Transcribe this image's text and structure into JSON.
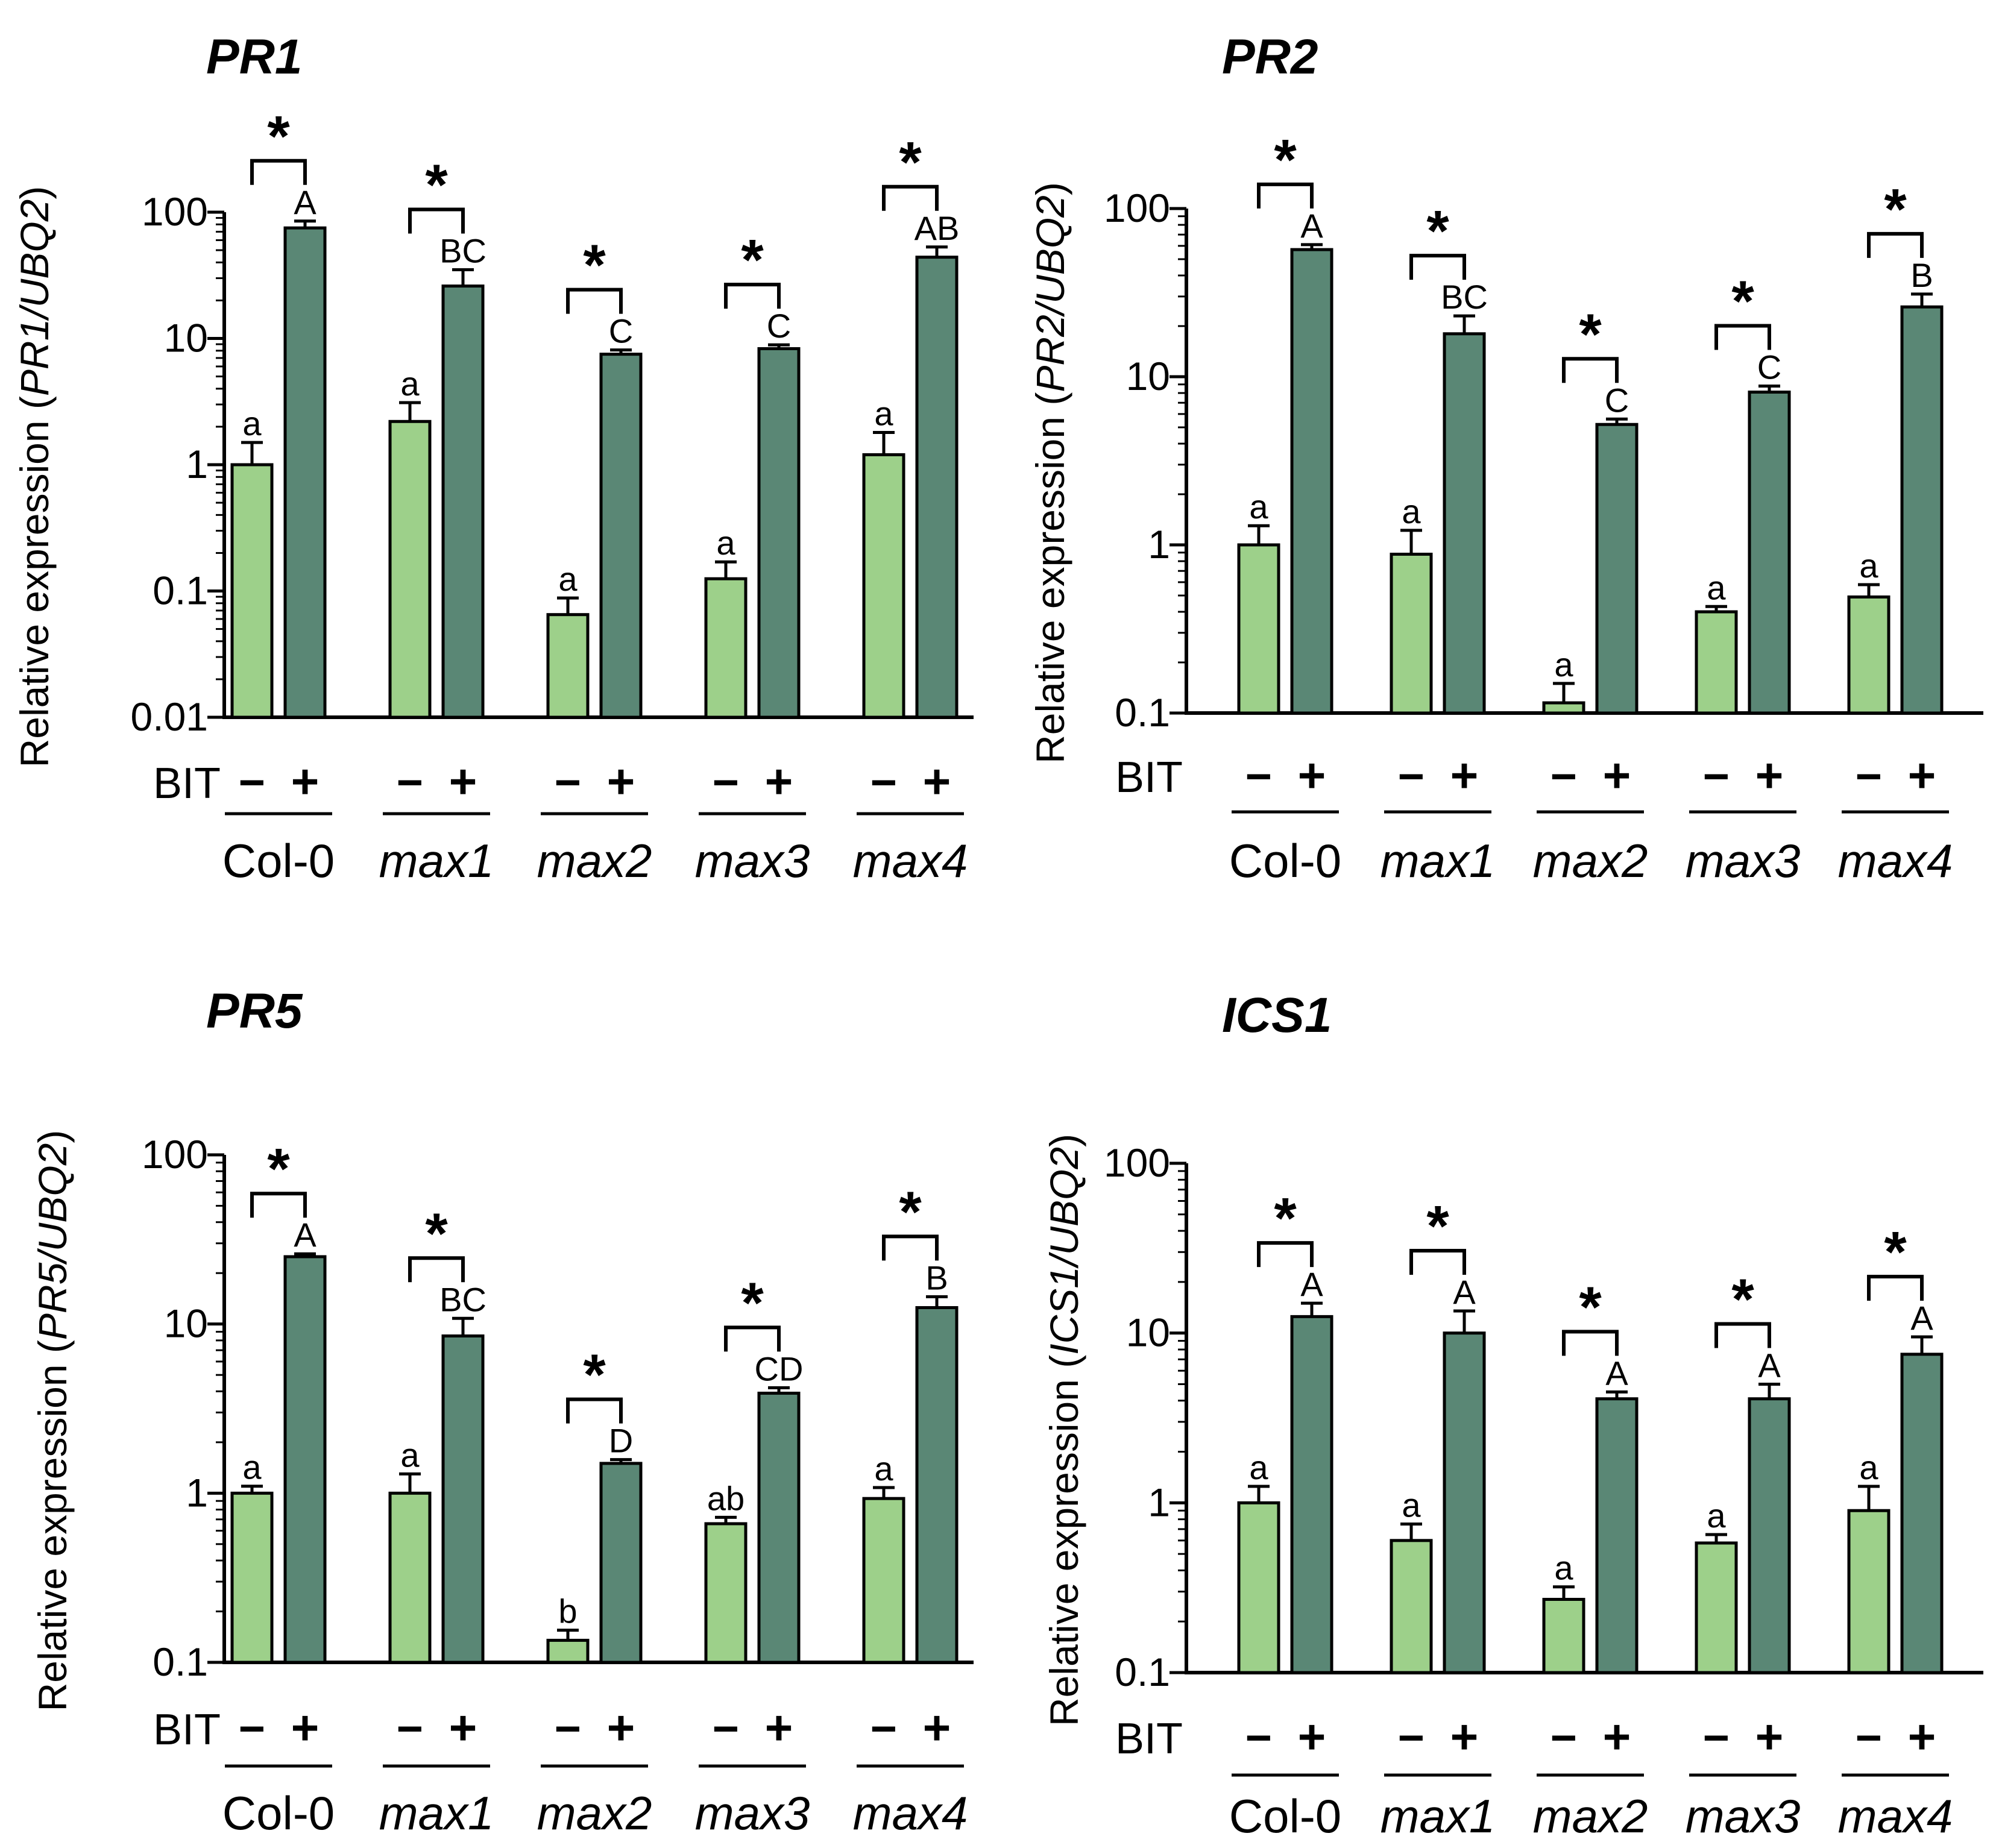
{
  "figure": {
    "bit_label": "BIT",
    "minus_symbol": "−",
    "plus_symbol": "+",
    "star_symbol": "*",
    "colors": {
      "control": "#9dd08a",
      "treated": "#5a8775",
      "stroke": "#000000"
    }
  },
  "chart_data": [
    {
      "type": "bar",
      "title": "PR1",
      "ylabel_prefix": "Relative expression (",
      "ylabel_gene": "PR1/UBQ2",
      "ylabel_suffix": ")",
      "yscale": "log",
      "ylim": [
        0.01,
        100
      ],
      "yticks": [
        "100",
        "10",
        "1",
        "0.1",
        "0.01"
      ],
      "yticks_values": [
        100,
        10,
        1,
        0.1,
        0.01
      ],
      "categories": [
        "Col-0",
        "max1",
        "max2",
        "max3",
        "max4"
      ],
      "category_italic": [
        false,
        true,
        true,
        true,
        true
      ],
      "series": [
        {
          "name": "− BIT",
          "values": [
            1.0,
            2.2,
            0.065,
            0.125,
            1.2
          ],
          "errors": [
            1.5,
            3.1,
            0.088,
            0.17,
            1.8
          ],
          "letters": [
            "a",
            "a",
            "a",
            "a",
            "a"
          ]
        },
        {
          "name": "+ BIT",
          "values": [
            75,
            26,
            7.5,
            8.3,
            44
          ],
          "errors": [
            85,
            35,
            8.1,
            8.9,
            53
          ],
          "letters": [
            "A",
            "BC",
            "C",
            "C",
            "AB"
          ]
        }
      ],
      "significance": [
        "*",
        "*",
        "*",
        "*",
        "*"
      ]
    },
    {
      "type": "bar",
      "title": "PR2",
      "ylabel_prefix": "Relative expression (",
      "ylabel_gene": "PR2/UBQ2",
      "ylabel_suffix": ")",
      "yscale": "log",
      "ylim": [
        0.1,
        100
      ],
      "yticks": [
        "100",
        "10",
        "1",
        "0.1"
      ],
      "yticks_values": [
        100,
        10,
        1,
        0.1
      ],
      "categories": [
        "Col-0",
        "max1",
        "max2",
        "max3",
        "max4"
      ],
      "category_italic": [
        false,
        true,
        true,
        true,
        true
      ],
      "series": [
        {
          "name": "− BIT",
          "values": [
            1.0,
            0.88,
            0.115,
            0.4,
            0.49
          ],
          "errors": [
            1.3,
            1.22,
            0.15,
            0.43,
            0.58
          ],
          "letters": [
            "a",
            "a",
            "a",
            "a",
            "a"
          ]
        },
        {
          "name": "+ BIT",
          "values": [
            57,
            18,
            5.2,
            8.1,
            26
          ],
          "errors": [
            61,
            23,
            5.6,
            8.8,
            31
          ],
          "letters": [
            "A",
            "BC",
            "C",
            "C",
            "B"
          ]
        }
      ],
      "significance": [
        "*",
        "*",
        "*",
        "*",
        "*"
      ]
    },
    {
      "type": "bar",
      "title": "PR5",
      "ylabel_prefix": "Relative expression (",
      "ylabel_gene": "PR5/UBQ2",
      "ylabel_suffix": ")",
      "yscale": "log",
      "ylim": [
        0.1,
        100
      ],
      "yticks": [
        "100",
        "10",
        "1",
        "0.1"
      ],
      "yticks_values": [
        100,
        10,
        1,
        0.1
      ],
      "categories": [
        "Col-0",
        "max1",
        "max2",
        "max3",
        "max4"
      ],
      "category_italic": [
        false,
        true,
        true,
        true,
        true
      ],
      "series": [
        {
          "name": "− BIT",
          "values": [
            1.0,
            1.0,
            0.135,
            0.66,
            0.93
          ],
          "errors": [
            1.1,
            1.3,
            0.155,
            0.72,
            1.08
          ],
          "letters": [
            "a",
            "a",
            "b",
            "ab",
            "a"
          ]
        },
        {
          "name": "+ BIT",
          "values": [
            25,
            8.5,
            1.5,
            3.9,
            12.5
          ],
          "errors": [
            26,
            10.8,
            1.58,
            4.2,
            14.5
          ],
          "letters": [
            "A",
            "BC",
            "D",
            "CD",
            "B"
          ]
        }
      ],
      "significance": [
        "*",
        "*",
        "*",
        "*",
        "*"
      ]
    },
    {
      "type": "bar",
      "title": "ICS1",
      "ylabel_prefix": "Relative expression (",
      "ylabel_gene": "ICS1/UBQ2",
      "ylabel_suffix": ")",
      "yscale": "log",
      "ylim": [
        0.1,
        100
      ],
      "yticks": [
        "100",
        "10",
        "1",
        "0.1"
      ],
      "yticks_values": [
        100,
        10,
        1,
        0.1
      ],
      "categories": [
        "Col-0",
        "max1",
        "max2",
        "max3",
        "max4"
      ],
      "category_italic": [
        false,
        true,
        true,
        true,
        true
      ],
      "series": [
        {
          "name": "− BIT",
          "values": [
            1.0,
            0.6,
            0.27,
            0.58,
            0.9
          ],
          "errors": [
            1.25,
            0.75,
            0.32,
            0.65,
            1.25
          ],
          "letters": [
            "a",
            "a",
            "a",
            "a",
            "a"
          ]
        },
        {
          "name": "+ BIT",
          "values": [
            12.5,
            10,
            4.1,
            4.1,
            7.5
          ],
          "errors": [
            15,
            13.5,
            4.5,
            5.0,
            9.5
          ],
          "letters": [
            "A",
            "A",
            "A",
            "A",
            "A"
          ]
        }
      ],
      "significance": [
        "*",
        "*",
        "*",
        "*",
        "*"
      ]
    }
  ]
}
